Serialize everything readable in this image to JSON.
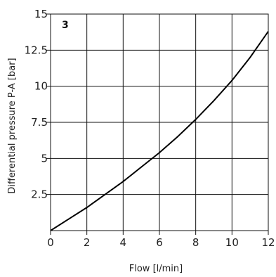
{
  "chart_data": {
    "type": "line",
    "panel_label": "3",
    "xlabel": "Flow [l/min]",
    "ylabel": "Differential pressure P-A [bar]",
    "xlim": [
      0,
      12
    ],
    "ylim": [
      0,
      15
    ],
    "x_ticks": [
      "0",
      "2",
      "4",
      "6",
      "8",
      "10",
      "12"
    ],
    "y_ticks": [
      "2.5",
      "5",
      "7.5",
      "10",
      "12.5",
      "15"
    ],
    "grid": true,
    "series": [
      {
        "x": [
          0,
          1,
          2,
          3,
          4,
          5,
          6,
          7,
          8,
          9,
          10,
          11,
          12
        ],
        "y": [
          0,
          0.8,
          1.6,
          2.5,
          3.4,
          4.4,
          5.4,
          6.5,
          7.7,
          9.0,
          10.4,
          12.0,
          13.8
        ]
      }
    ],
    "colors": {
      "line": "#000000",
      "grid": "#111111"
    }
  }
}
